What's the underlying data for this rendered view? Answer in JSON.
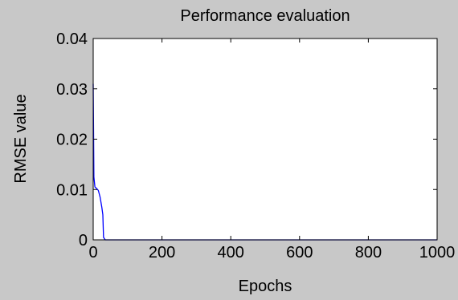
{
  "chart_data": {
    "type": "line",
    "title": "Performance evaluation",
    "xlabel": "Epochs",
    "ylabel": "RMSE value",
    "xlim": [
      0,
      1000
    ],
    "ylim": [
      0,
      0.04
    ],
    "xticks": [
      0,
      200,
      400,
      600,
      800,
      1000
    ],
    "yticks": [
      0,
      0.01,
      0.02,
      0.03,
      0.04
    ],
    "xtick_labels": [
      "0",
      "200",
      "400",
      "600",
      "800",
      "1000"
    ],
    "ytick_labels": [
      "0",
      "0.01",
      "0.02",
      "0.03",
      "0.04"
    ],
    "grid": false,
    "background_color": "#c8c8c8",
    "axes_color": "#ffffff",
    "series": [
      {
        "color": "#0000ff",
        "x": [
          0,
          1,
          2,
          5,
          10,
          15,
          20,
          25,
          28,
          30,
          35,
          40,
          100,
          200,
          400,
          600,
          800,
          1000
        ],
        "y": [
          0.031,
          0.022,
          0.0125,
          0.0105,
          0.0102,
          0.0098,
          0.0085,
          0.0065,
          0.005,
          0.0005,
          0.0,
          0.0,
          0.0,
          0.0,
          0.0,
          0.0,
          0.0,
          0.0
        ]
      }
    ]
  }
}
